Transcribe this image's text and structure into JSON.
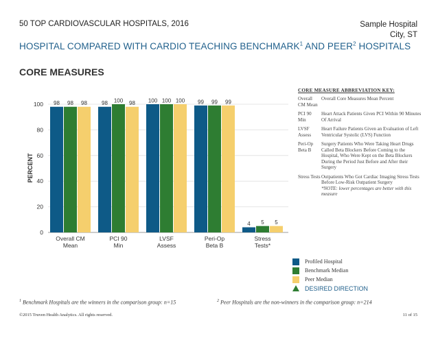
{
  "header": {
    "report_title": "50 TOP CARDIOVASCULAR HOSPITALS, 2016",
    "hospital_name": "Sample Hospital",
    "hospital_location": "City, ST"
  },
  "subtitle": {
    "part1": "HOSPITAL COMPARED WITH CARDIO TEACHING BENCHMARK",
    "sup1": "1",
    "part2": " AND PEER",
    "sup2": "2",
    "part3": " HOSPITALS"
  },
  "section_title": "CORE MEASURES",
  "chart_data": {
    "type": "bar",
    "ylabel": "PERCENT",
    "ylim": [
      0,
      100
    ],
    "yticks": [
      "0",
      "20",
      "40",
      "60",
      "80",
      "100"
    ],
    "grid": true,
    "categories": [
      "Overall CM\nMean",
      "PCI 90\nMin",
      "LVSF\nAssess",
      "Peri-Op\nBeta B",
      "Stress\nTests*"
    ],
    "series": [
      {
        "name": "Profiled Hospital",
        "color": "#0e5a87",
        "values": [
          98,
          98,
          100,
          99,
          4
        ]
      },
      {
        "name": "Benchmark Median",
        "color": "#2e7d32",
        "values": [
          98,
          100,
          100,
          99,
          5
        ]
      },
      {
        "name": "Peer Median",
        "color": "#f5cf6d",
        "values": [
          98,
          98,
          100,
          99,
          5
        ]
      }
    ]
  },
  "key": {
    "title": "CORE MEASURE ABBREVIATION KEY:",
    "rows": [
      {
        "abbr": "Overall CM Mean",
        "desc": "Overall Core Measures Mean Percent"
      },
      {
        "abbr": "PCI 90 Min",
        "desc": "Heart Attack Patients Given PCI Within 90 Minutes Of Arrival"
      },
      {
        "abbr": "LVSF Assess",
        "desc": "Heart Failure Patients Given an Evaluation of Left Ventricular Systolic (LVS) Function"
      },
      {
        "abbr": "Peri-Op Beta B",
        "desc": "Surgery Patients Who Were Taking Heart Drugs Called Beta Blockers Before Coming to the Hospital, Who Were Kept on the Beta Blockers During the Period Just Before and After their Surgery"
      },
      {
        "abbr": "Stress Tests",
        "desc": "Outpatients Who Got Cardiac Imaging Stress Tests Before Low-Risk Outpatient Surgery",
        "note": "*NOTE: lower percentages are better with this measure"
      }
    ]
  },
  "legend": {
    "items": [
      {
        "label": "Profiled Hospital",
        "color": "#0e5a87"
      },
      {
        "label": "Benchmark Median",
        "color": "#2e7d32"
      },
      {
        "label": "Peer Median",
        "color": "#f5cf6d"
      }
    ],
    "desired_direction": "DESIRED DIRECTION"
  },
  "footnotes": {
    "note1_sup": "1",
    "note1": " Benchmark Hospitals are the winners in the comparison group: n=15",
    "note2_sup": "2",
    "note2": " Peer Hospitals are the non-winners in the comparison group: n=214"
  },
  "footer": {
    "copyright": "©2015 Truven Health Analytics. All rights reserved.",
    "page": "11 of 15"
  }
}
